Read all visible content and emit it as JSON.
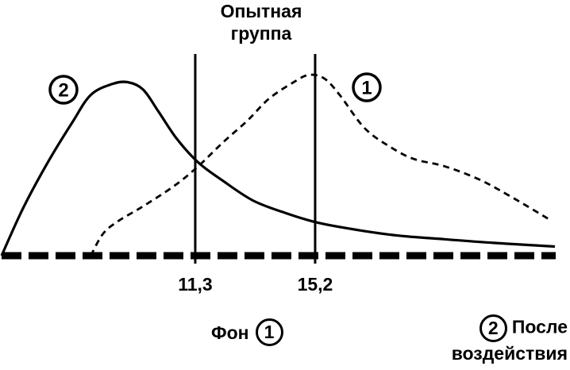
{
  "colors": {
    "ink": "#000000",
    "background": "#ffffff"
  },
  "chart_data": {
    "type": "line",
    "title": "Опытная группа",
    "xlim": [
      5,
      23
    ],
    "ylim": [
      0,
      100
    ],
    "grid": false,
    "legend": "bottom",
    "markers": [
      {
        "x": 11.3,
        "label": "11,3"
      },
      {
        "x": 15.2,
        "label": "15,2"
      }
    ],
    "series": [
      {
        "name": "Фон",
        "badge": "1",
        "x": [
          7.9,
          8.3,
          8.8,
          9.6,
          10.6,
          11.4,
          12.2,
          13.0,
          13.7,
          14.5,
          15.0,
          15.5,
          16.0,
          16.8,
          17.6,
          18.4,
          19.4,
          20.5,
          21.5,
          22.8
        ],
        "y": [
          0,
          12,
          19,
          27,
          38,
          49,
          62,
          74,
          86,
          95,
          99,
          97,
          88,
          70,
          60,
          53,
          49,
          42,
          33,
          20
        ]
      },
      {
        "name": "После воздействия",
        "badge": "2",
        "x": [
          5.0,
          5.7,
          6.5,
          7.3,
          7.9,
          8.6,
          9.1,
          9.6,
          10.1,
          10.7,
          11.4,
          12.2,
          13.2,
          14.3,
          15.3,
          16.6,
          17.9,
          19.4,
          21.0,
          23.0
        ],
        "y": [
          0,
          26,
          51,
          73,
          88,
          94,
          95,
          91,
          79,
          64,
          51,
          41,
          30,
          23,
          18,
          14,
          11,
          9,
          7,
          5
        ]
      }
    ]
  }
}
